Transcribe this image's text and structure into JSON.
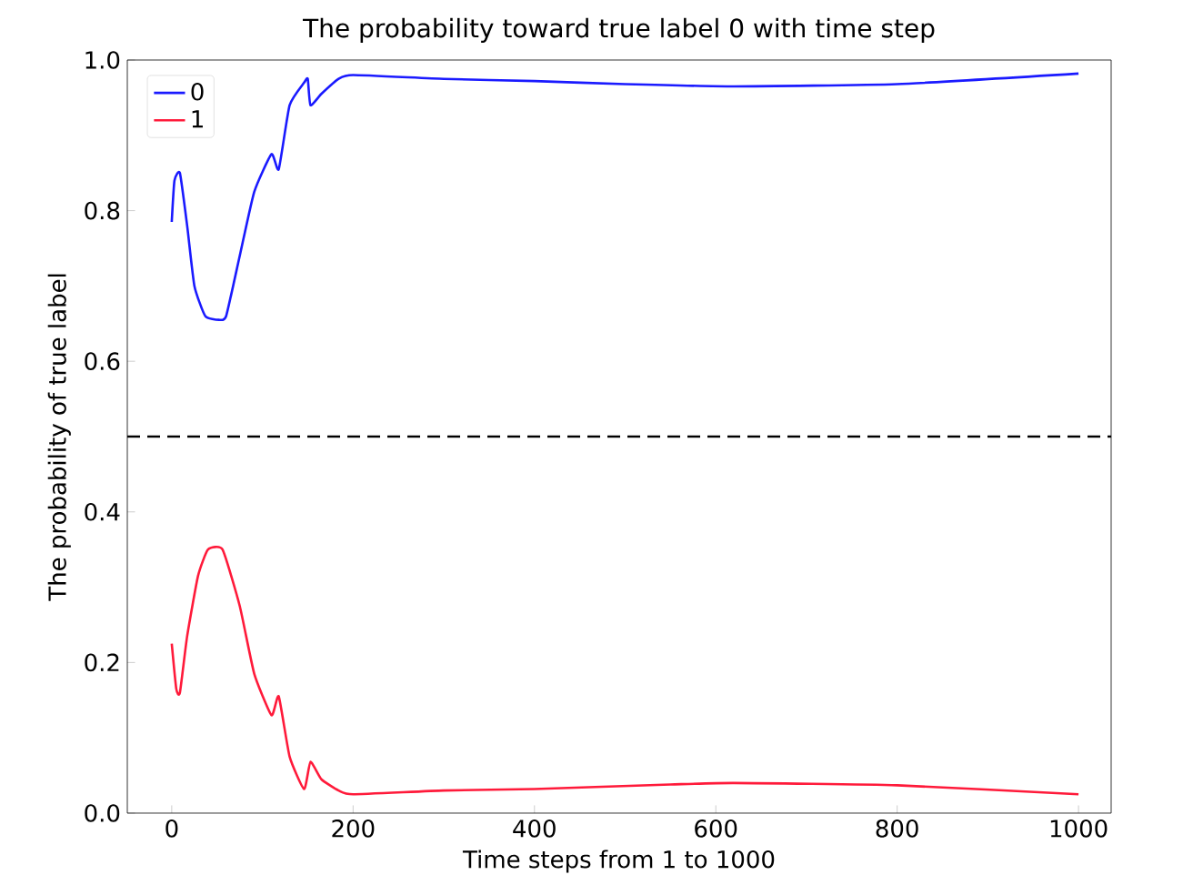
{
  "chart_data": {
    "type": "line",
    "title": "The probability toward true label 0 with time step",
    "xlabel": "Time steps from 1 to 1000",
    "ylabel": "The probability of true label",
    "xlim": [
      -49,
      1036
    ],
    "ylim": [
      0,
      1
    ],
    "xticks": [
      0,
      200,
      400,
      600,
      800,
      1000
    ],
    "yticks": [
      {
        "value": 0,
        "label": "0.0"
      },
      0.2,
      0.4,
      0.6,
      0.8,
      {
        "value": 1,
        "label": "1.0"
      }
    ],
    "legend": "top left",
    "grid": false,
    "line_style": "solid",
    "ref_lines": [
      {
        "axis": "y",
        "value": 0.5,
        "color": "#000000",
        "line_style": "dashed"
      }
    ],
    "series": [
      {
        "name": "0",
        "color": "#1a1aff",
        "x": [
          0,
          3,
          9,
          17,
          25,
          37,
          52,
          60,
          75,
          91,
          110,
          118,
          130,
          146,
          150,
          153,
          165,
          184,
          200,
          300,
          400,
          500,
          620,
          800,
          1000
        ],
        "values": [
          0.785,
          0.84,
          0.85,
          0.78,
          0.7,
          0.66,
          0.655,
          0.66,
          0.74,
          0.825,
          0.875,
          0.855,
          0.94,
          0.97,
          0.975,
          0.94,
          0.955,
          0.975,
          0.98,
          0.975,
          0.972,
          0.968,
          0.965,
          0.968,
          0.982
        ]
      },
      {
        "name": "1",
        "color": "#ff1a3a",
        "x": [
          0,
          5,
          9,
          17,
          29,
          40,
          56,
          75,
          91,
          110,
          118,
          130,
          146,
          153,
          165,
          184,
          200,
          300,
          400,
          550,
          620,
          800,
          1000
        ],
        "values": [
          0.225,
          0.165,
          0.16,
          0.235,
          0.315,
          0.35,
          0.35,
          0.275,
          0.185,
          0.13,
          0.155,
          0.075,
          0.032,
          0.068,
          0.045,
          0.03,
          0.025,
          0.03,
          0.032,
          0.038,
          0.04,
          0.037,
          0.025
        ]
      }
    ]
  }
}
